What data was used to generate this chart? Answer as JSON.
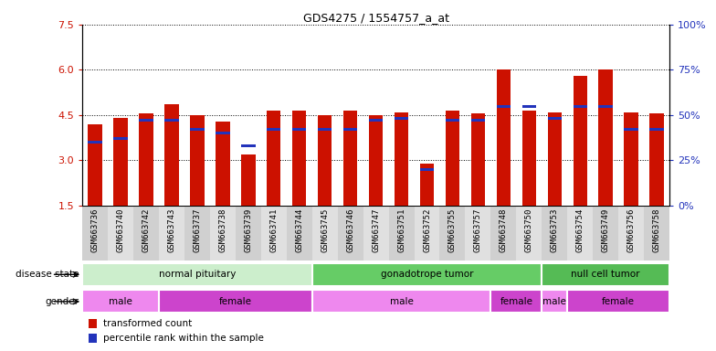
{
  "title": "GDS4275 / 1554757_a_at",
  "samples": [
    "GSM663736",
    "GSM663740",
    "GSM663742",
    "GSM663743",
    "GSM663737",
    "GSM663738",
    "GSM663739",
    "GSM663741",
    "GSM663744",
    "GSM663745",
    "GSM663746",
    "GSM663747",
    "GSM663751",
    "GSM663752",
    "GSM663755",
    "GSM663757",
    "GSM663748",
    "GSM663750",
    "GSM663753",
    "GSM663754",
    "GSM663749",
    "GSM663756",
    "GSM663758"
  ],
  "transformed_count": [
    4.2,
    4.4,
    4.55,
    4.85,
    4.5,
    4.3,
    3.2,
    4.65,
    4.65,
    4.5,
    4.65,
    4.5,
    4.6,
    2.9,
    4.65,
    4.55,
    6.0,
    4.65,
    4.6,
    5.8,
    6.0,
    4.6,
    4.55
  ],
  "percentile_rank": [
    35,
    37,
    47,
    47,
    42,
    40,
    33,
    42,
    42,
    42,
    42,
    47,
    48,
    20,
    47,
    47,
    55,
    55,
    48,
    55,
    55,
    42,
    42
  ],
  "ylim_left": [
    1.5,
    7.5
  ],
  "ylim_right": [
    0,
    100
  ],
  "yticks_left": [
    1.5,
    3.0,
    4.5,
    6.0,
    7.5
  ],
  "yticks_right": [
    0,
    25,
    50,
    75,
    100
  ],
  "bar_color": "#cc1100",
  "percentile_color": "#2233bb",
  "disease_groups": [
    {
      "label": "normal pituitary",
      "start": 0,
      "end": 9,
      "color": "#cceecc"
    },
    {
      "label": "gonadotrope tumor",
      "start": 9,
      "end": 18,
      "color": "#66cc66"
    },
    {
      "label": "null cell tumor",
      "start": 18,
      "end": 23,
      "color": "#55bb55"
    }
  ],
  "gender_groups": [
    {
      "label": "male",
      "start": 0,
      "end": 3,
      "color": "#ee88ee"
    },
    {
      "label": "female",
      "start": 3,
      "end": 9,
      "color": "#cc44cc"
    },
    {
      "label": "male",
      "start": 9,
      "end": 16,
      "color": "#ee88ee"
    },
    {
      "label": "female",
      "start": 16,
      "end": 18,
      "color": "#cc44cc"
    },
    {
      "label": "male",
      "start": 18,
      "end": 19,
      "color": "#ee88ee"
    },
    {
      "label": "female",
      "start": 19,
      "end": 23,
      "color": "#cc44cc"
    }
  ],
  "legend_items": [
    {
      "label": "transformed count",
      "color": "#cc1100"
    },
    {
      "label": "percentile rank within the sample",
      "color": "#2233bb"
    }
  ],
  "xtick_colors": [
    "#d0d0d0",
    "#e0e0e0"
  ]
}
